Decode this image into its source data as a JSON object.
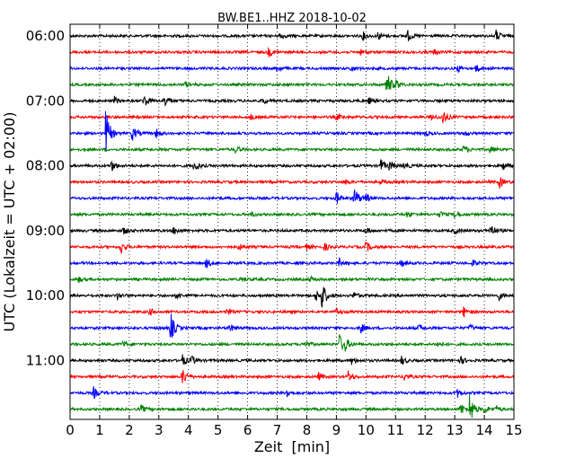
{
  "chart_data": {
    "type": "line",
    "title": "BW.BE1..HHZ 2018-10-02",
    "xlabel": "Zeit  [min]",
    "ylabel": "UTC (Lokalzeit = UTC + 02:00)",
    "xlim": [
      0,
      15
    ],
    "x_ticks": [
      0,
      1,
      2,
      3,
      4,
      5,
      6,
      7,
      8,
      9,
      10,
      11,
      12,
      13,
      14,
      15
    ],
    "x_tick_labels": [
      "0",
      "1",
      "2",
      "3",
      "4",
      "5",
      "6",
      "7",
      "8",
      "9",
      "10",
      "11",
      "12",
      "13",
      "14",
      "15"
    ],
    "y_tick_labels": [
      {
        "label": "06:00",
        "trace_index": 0
      },
      {
        "label": "07:00",
        "trace_index": 4
      },
      {
        "label": "08:00",
        "trace_index": 8
      },
      {
        "label": "09:00",
        "trace_index": 12
      },
      {
        "label": "10:00",
        "trace_index": 16
      },
      {
        "label": "11:00",
        "trace_index": 20
      }
    ],
    "grid": "vertical dotted at each minute",
    "trace_minutes": 15,
    "trace_colors": [
      "#000000",
      "#ff0000",
      "#0000ff",
      "#008000"
    ],
    "traces": [
      {
        "start": "06:00",
        "events": [
          {
            "t": 7.1,
            "amp": 0.25
          },
          {
            "t": 9.9,
            "amp": 0.3
          },
          {
            "t": 10.4,
            "amp": 0.3
          },
          {
            "t": 11.4,
            "amp": 0.45
          },
          {
            "t": 14.4,
            "amp": 0.45
          }
        ]
      },
      {
        "start": "06:15",
        "events": [
          {
            "t": 6.7,
            "amp": 0.35
          },
          {
            "t": 9.8,
            "amp": 0.2
          },
          {
            "t": 12.3,
            "amp": 0.2
          }
        ]
      },
      {
        "start": "06:30",
        "events": [
          {
            "t": 7.0,
            "amp": 0.3
          },
          {
            "t": 9.5,
            "amp": 0.25
          },
          {
            "t": 13.1,
            "amp": 0.3
          },
          {
            "t": 13.7,
            "amp": 0.3
          }
        ]
      },
      {
        "start": "06:45",
        "events": [
          {
            "t": 3.9,
            "amp": 0.2
          },
          {
            "t": 10.7,
            "amp": 1.1
          },
          {
            "t": 11.0,
            "amp": 0.35
          }
        ]
      },
      {
        "start": "07:00",
        "events": [
          {
            "t": 1.5,
            "amp": 0.3
          },
          {
            "t": 2.5,
            "amp": 0.55
          },
          {
            "t": 3.2,
            "amp": 0.55
          },
          {
            "t": 6.5,
            "amp": 0.25
          },
          {
            "t": 10.1,
            "amp": 0.25
          }
        ]
      },
      {
        "start": "07:15",
        "events": [
          {
            "t": 6.1,
            "amp": 0.2
          },
          {
            "t": 9.0,
            "amp": 0.25
          },
          {
            "t": 12.6,
            "amp": 0.6
          },
          {
            "t": 12.2,
            "amp": 0.25
          }
        ]
      },
      {
        "start": "07:30",
        "events": [
          {
            "t": 1.2,
            "amp": 2.0
          },
          {
            "t": 2.1,
            "amp": 0.6
          },
          {
            "t": 2.9,
            "amp": 0.4
          },
          {
            "t": 12.0,
            "amp": 0.2
          },
          {
            "t": 13.3,
            "amp": 0.2
          }
        ]
      },
      {
        "start": "07:45",
        "events": [
          {
            "t": 5.6,
            "amp": 0.3
          },
          {
            "t": 13.3,
            "amp": 0.35
          },
          {
            "t": 14.2,
            "amp": 0.3
          }
        ]
      },
      {
        "start": "08:00",
        "events": [
          {
            "t": 1.4,
            "amp": 0.45
          },
          {
            "t": 4.2,
            "amp": 0.5
          },
          {
            "t": 10.5,
            "amp": 0.5
          },
          {
            "t": 10.8,
            "amp": 0.4
          },
          {
            "t": 11.3,
            "amp": 0.3
          },
          {
            "t": 14.6,
            "amp": 0.4
          }
        ]
      },
      {
        "start": "08:15",
        "events": [
          {
            "t": 9.3,
            "amp": 0.2
          },
          {
            "t": 10.5,
            "amp": 0.2
          },
          {
            "t": 14.5,
            "amp": 0.5
          }
        ]
      },
      {
        "start": "08:30",
        "events": [
          {
            "t": 9.6,
            "amp": 1.0
          },
          {
            "t": 9.0,
            "amp": 0.55
          },
          {
            "t": 10.0,
            "amp": 0.3
          }
        ]
      },
      {
        "start": "08:45",
        "events": [
          {
            "t": 6.1,
            "amp": 0.2
          },
          {
            "t": 11.4,
            "amp": 0.25
          },
          {
            "t": 13.0,
            "amp": 0.4
          },
          {
            "t": 12.5,
            "amp": 0.25
          }
        ]
      },
      {
        "start": "09:00",
        "events": [
          {
            "t": 1.8,
            "amp": 0.3
          },
          {
            "t": 3.5,
            "amp": 0.3
          },
          {
            "t": 10.0,
            "amp": 0.3
          },
          {
            "t": 13.0,
            "amp": 0.25
          },
          {
            "t": 14.2,
            "amp": 0.6
          }
        ]
      },
      {
        "start": "09:15",
        "events": [
          {
            "t": 1.7,
            "amp": 0.6
          },
          {
            "t": 5.7,
            "amp": 0.25
          },
          {
            "t": 8.6,
            "amp": 0.3
          },
          {
            "t": 10.0,
            "amp": 0.45
          },
          {
            "t": 8.0,
            "amp": 0.2
          }
        ]
      },
      {
        "start": "09:30",
        "events": [
          {
            "t": 4.6,
            "amp": 0.4
          },
          {
            "t": 9.1,
            "amp": 0.3
          },
          {
            "t": 11.2,
            "amp": 0.3
          },
          {
            "t": 13.6,
            "amp": 0.25
          }
        ]
      },
      {
        "start": "09:45",
        "events": [
          {
            "t": 0.3,
            "amp": 0.2
          },
          {
            "t": 5.8,
            "amp": 0.2
          },
          {
            "t": 8.1,
            "amp": 0.2
          }
        ]
      },
      {
        "start": "10:00",
        "events": [
          {
            "t": 1.6,
            "amp": 0.3
          },
          {
            "t": 3.6,
            "amp": 0.3
          },
          {
            "t": 8.5,
            "amp": 1.2
          },
          {
            "t": 8.3,
            "amp": 0.5
          },
          {
            "t": 9.6,
            "amp": 0.3
          },
          {
            "t": 14.5,
            "amp": 0.3
          }
        ]
      },
      {
        "start": "10:15",
        "events": [
          {
            "t": 2.7,
            "amp": 0.25
          },
          {
            "t": 5.3,
            "amp": 0.25
          },
          {
            "t": 9.0,
            "amp": 0.3
          },
          {
            "t": 13.3,
            "amp": 0.4
          }
        ]
      },
      {
        "start": "10:30",
        "events": [
          {
            "t": 3.4,
            "amp": 1.2
          },
          {
            "t": 5.4,
            "amp": 0.3
          },
          {
            "t": 9.8,
            "amp": 0.45
          },
          {
            "t": 11.8,
            "amp": 0.3
          },
          {
            "t": 13.5,
            "amp": 0.3
          }
        ]
      },
      {
        "start": "10:45",
        "events": [
          {
            "t": 1.8,
            "amp": 0.25
          },
          {
            "t": 7.9,
            "amp": 0.35
          },
          {
            "t": 9.1,
            "amp": 0.8
          },
          {
            "t": 9.3,
            "amp": 0.4
          },
          {
            "t": 12.4,
            "amp": 0.25
          }
        ]
      },
      {
        "start": "11:00",
        "events": [
          {
            "t": 3.8,
            "amp": 0.45
          },
          {
            "t": 4.1,
            "amp": 0.35
          },
          {
            "t": 9.5,
            "amp": 0.3
          },
          {
            "t": 11.2,
            "amp": 0.35
          },
          {
            "t": 13.2,
            "amp": 0.3
          }
        ]
      },
      {
        "start": "11:15",
        "events": [
          {
            "t": 3.8,
            "amp": 0.7
          },
          {
            "t": 8.4,
            "amp": 0.3
          },
          {
            "t": 9.4,
            "amp": 0.45
          },
          {
            "t": 11.3,
            "amp": 0.3
          }
        ]
      },
      {
        "start": "11:30",
        "events": [
          {
            "t": 0.8,
            "amp": 0.45
          },
          {
            "t": 7.3,
            "amp": 0.45
          },
          {
            "t": 13.1,
            "amp": 0.3
          }
        ]
      },
      {
        "start": "11:45",
        "events": [
          {
            "t": 2.4,
            "amp": 0.3
          },
          {
            "t": 13.5,
            "amp": 1.3
          },
          {
            "t": 13.2,
            "amp": 0.5
          },
          {
            "t": 14.0,
            "amp": 0.3
          },
          {
            "t": 14.4,
            "amp": 0.25
          }
        ]
      }
    ]
  }
}
